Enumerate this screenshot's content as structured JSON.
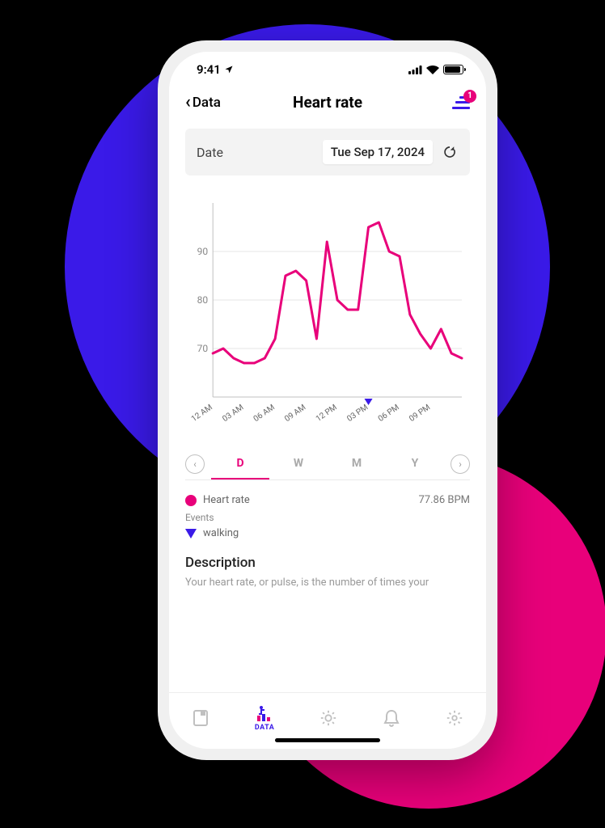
{
  "statusbar": {
    "time": "9:41"
  },
  "header": {
    "back_label": "Data",
    "title": "Heart rate",
    "badge_count": "1"
  },
  "date_picker": {
    "label": "Date",
    "value": "Tue Sep 17, 2024"
  },
  "chart": {
    "type": "line",
    "series_color": "#e8007a",
    "grid_color": "#e6e6e6",
    "axis_color": "#c0c0c0",
    "ylim": [
      60,
      100
    ],
    "yticks": [
      70,
      80,
      90
    ],
    "xlabels": [
      "12 AM",
      "03 AM",
      "06 AM",
      "09 AM",
      "12 PM",
      "03 PM",
      "06 PM",
      "09 PM"
    ],
    "series": [
      {
        "x": 0,
        "y": 69
      },
      {
        "x": 1,
        "y": 70
      },
      {
        "x": 2,
        "y": 68
      },
      {
        "x": 3,
        "y": 67
      },
      {
        "x": 4,
        "y": 67
      },
      {
        "x": 5,
        "y": 68
      },
      {
        "x": 6,
        "y": 72
      },
      {
        "x": 7,
        "y": 85
      },
      {
        "x": 8,
        "y": 86
      },
      {
        "x": 9,
        "y": 84
      },
      {
        "x": 10,
        "y": 72
      },
      {
        "x": 11,
        "y": 92
      },
      {
        "x": 12,
        "y": 80
      },
      {
        "x": 13,
        "y": 78
      },
      {
        "x": 14,
        "y": 78
      },
      {
        "x": 15,
        "y": 95
      },
      {
        "x": 16,
        "y": 96
      },
      {
        "x": 17,
        "y": 90
      },
      {
        "x": 18,
        "y": 89
      },
      {
        "x": 19,
        "y": 77
      },
      {
        "x": 20,
        "y": 73
      },
      {
        "x": 21,
        "y": 70
      },
      {
        "x": 22,
        "y": 74
      },
      {
        "x": 23,
        "y": 69
      },
      {
        "x": 24,
        "y": 68
      }
    ],
    "event_marker_x": 15,
    "event_marker_color": "#3a1ae8"
  },
  "range": {
    "tabs": [
      "D",
      "W",
      "M",
      "Y"
    ],
    "active_index": 0
  },
  "legend": {
    "series_label": "Heart rate",
    "series_color": "#e8007a",
    "series_value": "77.86 BPM",
    "events_section_label": "Events",
    "event_label": "walking",
    "event_color": "#3a1ae8"
  },
  "description": {
    "title": "Description",
    "body": "Your heart rate, or pulse, is the number of times your"
  },
  "tabbar": {
    "items": [
      {
        "label": ""
      },
      {
        "label": "DATA"
      },
      {
        "label": ""
      },
      {
        "label": ""
      },
      {
        "label": ""
      }
    ],
    "active_index": 1
  }
}
